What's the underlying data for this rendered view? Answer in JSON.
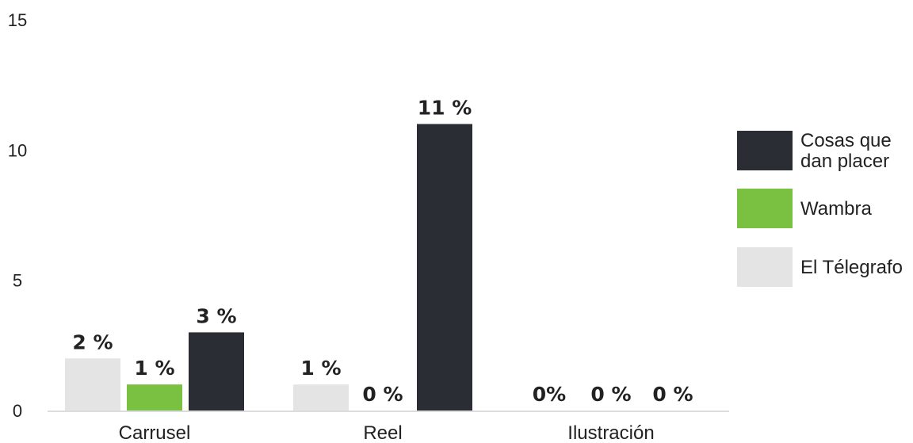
{
  "chart_data": {
    "type": "bar",
    "title": "",
    "xlabel": "",
    "ylabel": "",
    "ylim": [
      0,
      15
    ],
    "yticks": [
      0,
      5,
      10,
      15
    ],
    "grid": false,
    "legend_position": "right",
    "categories": [
      "Carrusel",
      "Reel",
      "Ilustración"
    ],
    "series": [
      {
        "name": "El Télegrafo",
        "legend_lines": [
          "El Télegrafo"
        ],
        "color": "#e4e4e4",
        "values": [
          2,
          1,
          0
        ],
        "labels": [
          "2 %",
          "1 %",
          "0%"
        ]
      },
      {
        "name": "Wambra",
        "legend_lines": [
          "Wambra"
        ],
        "color": "#7ac142",
        "values": [
          1,
          0,
          0
        ],
        "labels": [
          "1 %",
          "0 %",
          "0 %"
        ]
      },
      {
        "name": "Cosas que dan placer",
        "legend_lines": [
          "Cosas que",
          "dan placer"
        ],
        "color": "#2b2d34",
        "values": [
          3,
          11,
          0
        ],
        "labels": [
          "3 %",
          "11 %",
          "0 %"
        ]
      }
    ],
    "legend_order": [
      2,
      1,
      0
    ]
  }
}
